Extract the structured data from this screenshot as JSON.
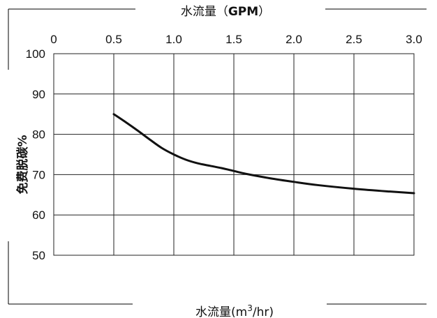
{
  "chart_data": {
    "type": "line",
    "top_axis_title": {
      "main": "水流量（",
      "unit": "GPM",
      "close": "）"
    },
    "top_ticks": [
      "0",
      "0.5",
      "1.0",
      "1.5",
      "2.0",
      "2.5",
      "3.0"
    ],
    "xlabel": {
      "main": "水流量(m",
      "sup": "3",
      "tail": "/hr)"
    },
    "ylabel": "免费脱碳%",
    "xlim": [
      0,
      3.0
    ],
    "ylim": [
      50,
      100
    ],
    "y_ticks": [
      "50",
      "60",
      "70",
      "80",
      "90",
      "100"
    ],
    "grid": true,
    "series": [
      {
        "x": [
          0.5,
          0.6,
          0.7,
          0.8,
          0.9,
          1.0,
          1.1,
          1.2,
          1.3,
          1.4,
          1.5,
          1.6,
          1.8,
          2.0,
          2.2,
          2.5,
          2.8,
          3.0
        ],
        "values": [
          85.0,
          83.0,
          80.9,
          78.7,
          76.6,
          75.0,
          73.7,
          72.8,
          72.2,
          71.6,
          70.9,
          70.2,
          69.1,
          68.2,
          67.4,
          66.5,
          65.8,
          65.4
        ]
      }
    ]
  }
}
